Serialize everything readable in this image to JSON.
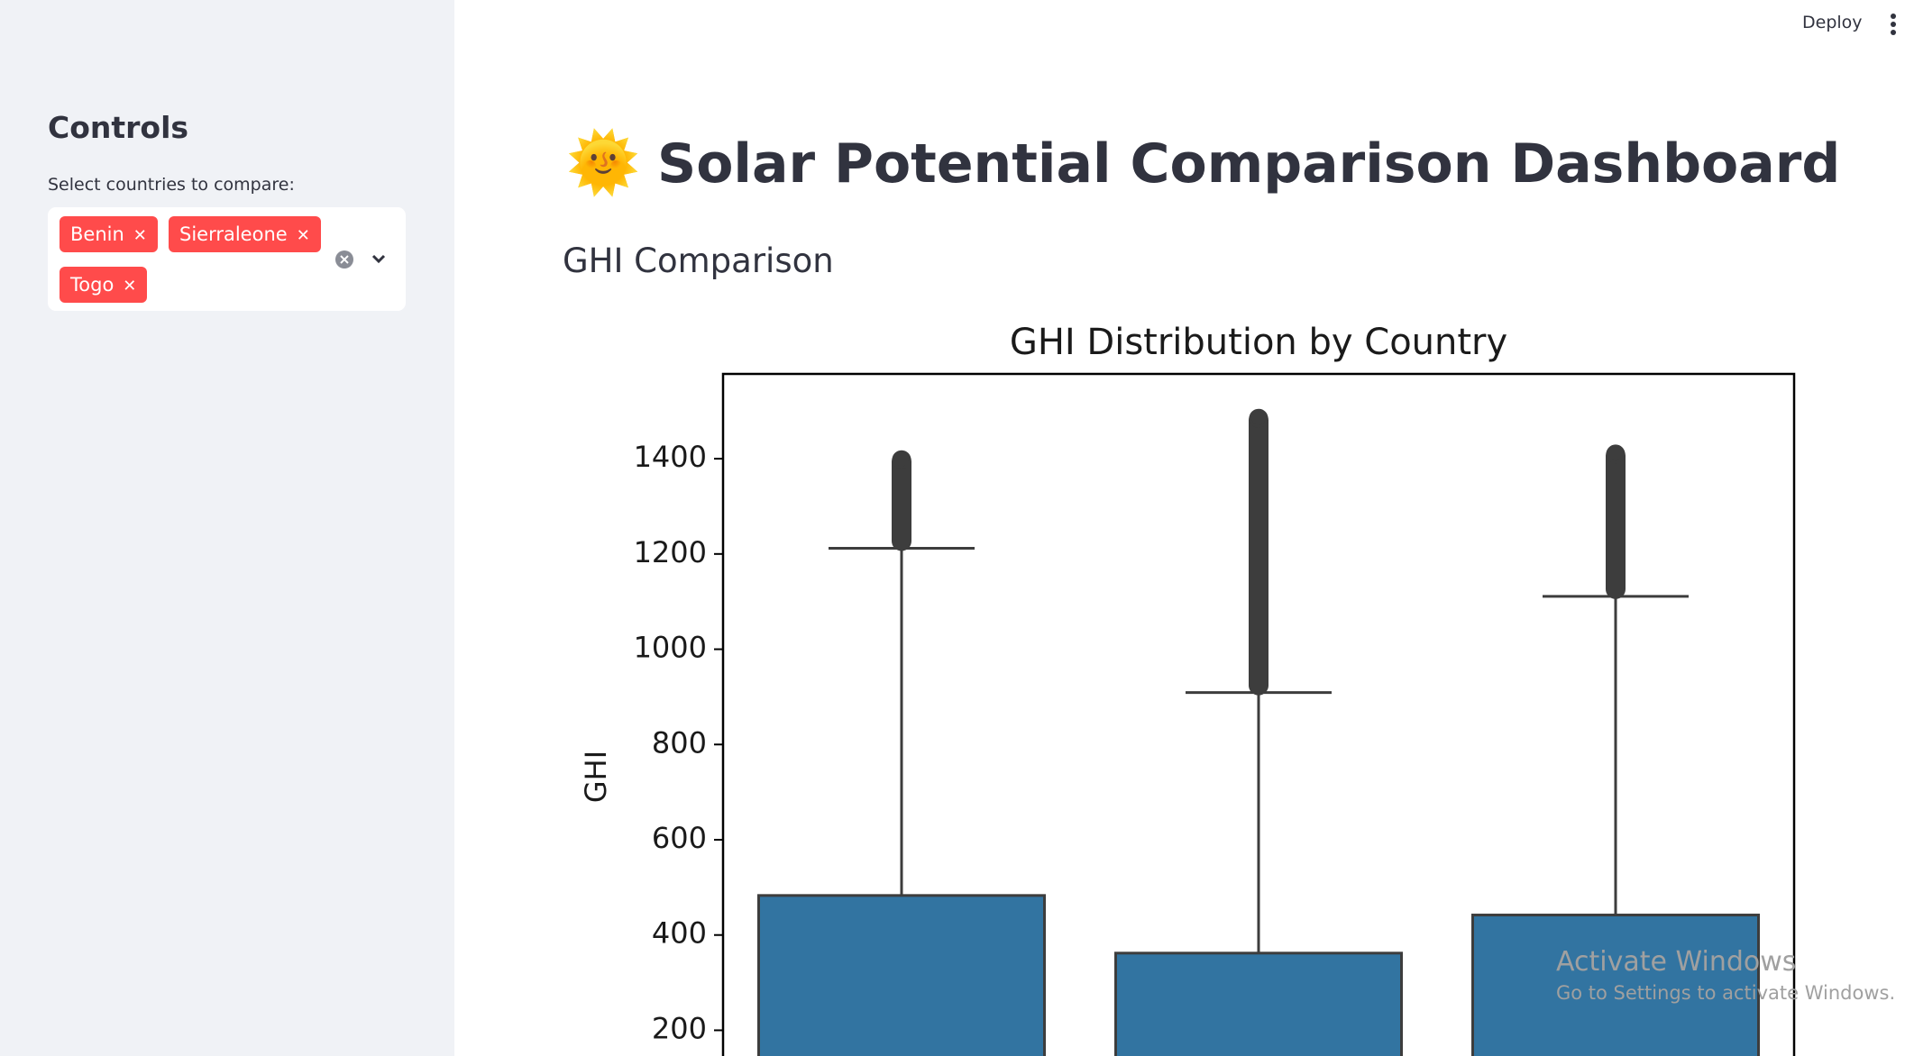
{
  "header": {
    "deploy": "Deploy"
  },
  "sidebar": {
    "title": "Controls",
    "select_label": "Select countries to compare:",
    "selected": [
      "Benin",
      "Sierraleone",
      "Togo"
    ]
  },
  "main": {
    "emoji": "🌞",
    "title": "Solar Potential Comparison Dashboard",
    "section": "GHI Comparison"
  },
  "chart_data": {
    "type": "box",
    "title": "GHI Distribution by Country",
    "y_label": "GHI",
    "color": "#3274a1",
    "boxes": [
      {
        "q3": 483,
        "whisker_high": 1212,
        "max_outlier": 1413
      },
      {
        "q3": 362,
        "whisker_high": 909,
        "max_outlier": 1500
      },
      {
        "q3": 442,
        "whisker_high": 1111,
        "max_outlier": 1425
      }
    ],
    "ylim": [
      146,
      1578
    ],
    "yticks": [
      200,
      400,
      600,
      800,
      1000,
      1200,
      1400
    ]
  },
  "watermark": {
    "title": "Activate Windows",
    "subtitle": "Go to Settings to activate Windows."
  }
}
